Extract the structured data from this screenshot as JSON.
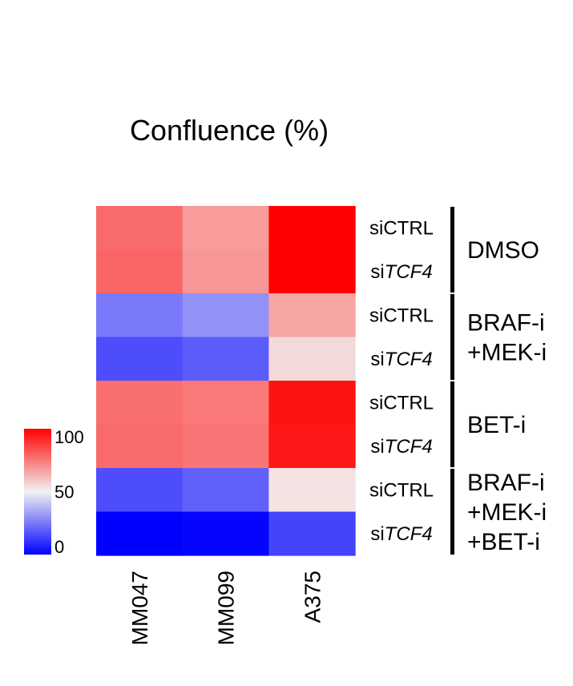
{
  "chart_data": {
    "type": "heatmap",
    "title": "Confluence (%)",
    "columns": [
      "MM047",
      "MM099",
      "A375"
    ],
    "rows": [
      {
        "label_prefix": "si",
        "label_suffix": "CTRL",
        "italic": false,
        "group": 0
      },
      {
        "label_prefix": "si",
        "label_suffix": "TCF4",
        "italic": true,
        "group": 0
      },
      {
        "label_prefix": "si",
        "label_suffix": "CTRL",
        "italic": false,
        "group": 1
      },
      {
        "label_prefix": "si",
        "label_suffix": "TCF4",
        "italic": true,
        "group": 1
      },
      {
        "label_prefix": "si",
        "label_suffix": "CTRL",
        "italic": false,
        "group": 2
      },
      {
        "label_prefix": "si",
        "label_suffix": "TCF4",
        "italic": true,
        "group": 2
      },
      {
        "label_prefix": "si",
        "label_suffix": "CTRL",
        "italic": false,
        "group": 3
      },
      {
        "label_prefix": "si",
        "label_suffix": "TCF4",
        "italic": true,
        "group": 3
      }
    ],
    "groups": [
      {
        "lines": [
          "DMSO"
        ]
      },
      {
        "lines": [
          "BRAF-i",
          "+MEK-i"
        ]
      },
      {
        "lines": [
          "BET-i"
        ]
      },
      {
        "lines": [
          "BRAF-i",
          "+MEK-i",
          "+BET-i"
        ]
      }
    ],
    "values": [
      [
        78,
        68,
        100
      ],
      [
        79,
        69,
        100
      ],
      [
        25,
        30,
        66
      ],
      [
        16,
        19,
        55
      ],
      [
        77,
        75,
        96
      ],
      [
        78,
        76,
        95
      ],
      [
        16,
        20,
        53
      ],
      [
        0,
        1,
        14
      ]
    ],
    "color_scale": {
      "min": 0,
      "mid": 50,
      "max": 100,
      "low_color": "#0000ff",
      "mid_color": "#f2f2f2",
      "high_color": "#ff0000",
      "ticks": [
        0,
        50,
        100
      ]
    }
  }
}
